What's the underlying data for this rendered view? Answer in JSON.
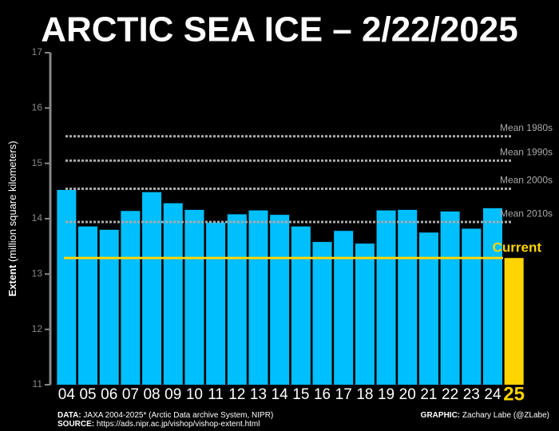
{
  "chart_data": {
    "type": "bar",
    "title": "ARCTIC SEA ICE – 2/22/2025",
    "y_label_bold": "Extent",
    "y_label": "(million square kilometers)",
    "categories": [
      "04",
      "05",
      "06",
      "07",
      "08",
      "09",
      "10",
      "11",
      "12",
      "13",
      "14",
      "15",
      "16",
      "17",
      "18",
      "19",
      "20",
      "21",
      "22",
      "23",
      "24",
      "25"
    ],
    "values": [
      14.52,
      13.86,
      13.8,
      14.14,
      14.48,
      14.28,
      14.16,
      13.93,
      14.08,
      14.15,
      14.07,
      13.86,
      13.58,
      13.78,
      13.55,
      14.15,
      14.16,
      13.75,
      14.13,
      13.82,
      14.19,
      13.29
    ],
    "color": "#00bfff",
    "highlight_color": "#ffd400",
    "ylim": [
      11,
      17
    ],
    "yticks": [
      11,
      12,
      13,
      14,
      15,
      16,
      17
    ],
    "reference_lines": [
      {
        "name": "Mean 1980s",
        "value": 15.49
      },
      {
        "name": "Mean 1990s",
        "value": 15.05
      },
      {
        "name": "Mean 2000s",
        "value": 14.54
      },
      {
        "name": "Mean 2010s",
        "value": 13.94
      }
    ],
    "current_label": "Current",
    "footer": {
      "data_label": "DATA:",
      "data_text": "JAXA 2004-2025* (Arctic Data archive System, NIPR)",
      "source_label": "SOURCE:",
      "source_text": "https://ads.nipr.ac.jp/vishop/vishop-extent.html",
      "graphic_label": "GRAPHIC:",
      "graphic_text": "Zachary Labe (@ZLabe)"
    }
  }
}
